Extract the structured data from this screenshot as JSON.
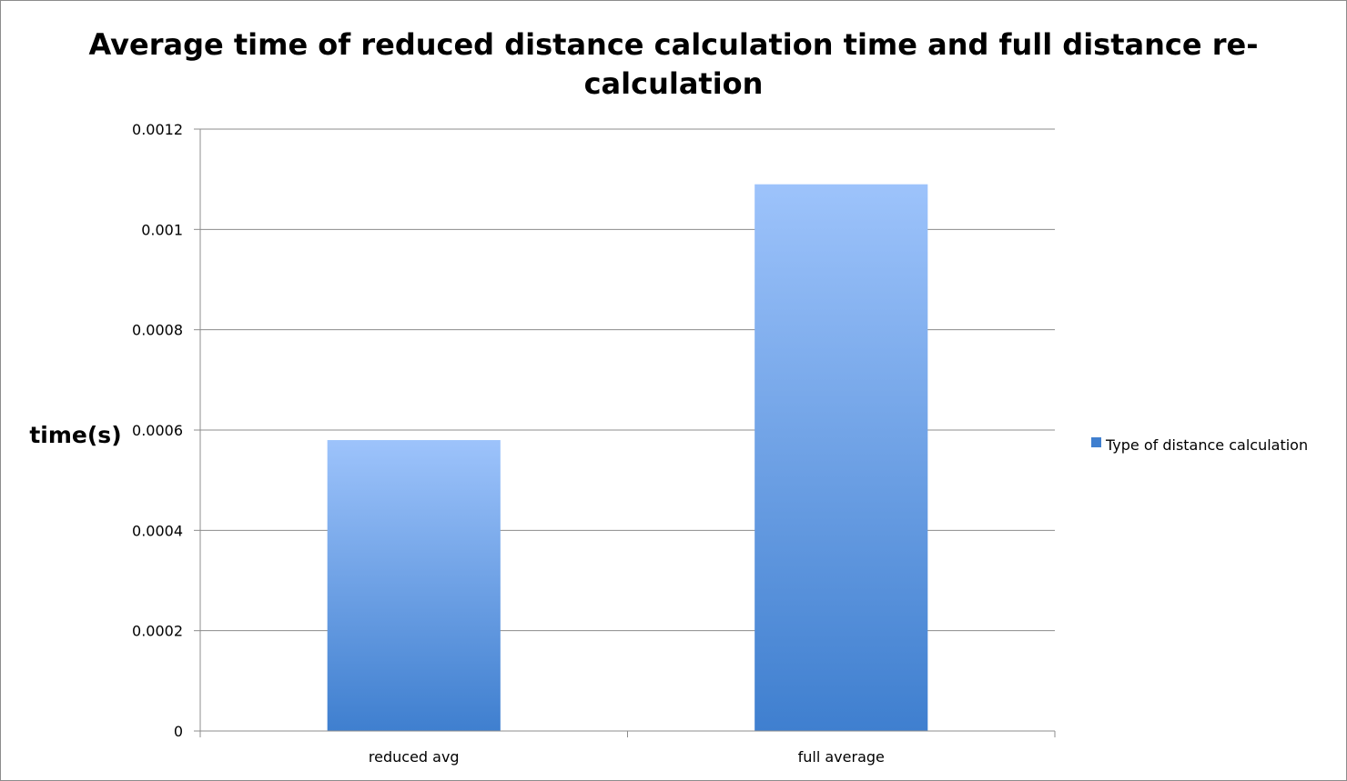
{
  "chart_data": {
    "type": "bar",
    "title_lines": [
      "Average time of reduced distance calculation time and full distance re-",
      "calculation"
    ],
    "xlabel": "",
    "ylabel": "time(s)",
    "categories": [
      "reduced avg",
      "full average"
    ],
    "series": [
      {
        "name": "Type of distance calculation",
        "values": [
          0.00058,
          0.00109
        ]
      }
    ],
    "ylim": [
      0,
      0.0012
    ],
    "yticks": [
      0,
      0.0002,
      0.0004,
      0.0006,
      0.0008,
      0.001,
      0.0012
    ],
    "ytick_labels": [
      "0",
      "0.0002",
      "0.0004",
      "0.0006",
      "0.0008",
      "0.001",
      "0.0012"
    ],
    "grid": true,
    "legend_position": "right",
    "colors": {
      "bar_top": "#9dc3fb",
      "bar_bottom": "#3f7fcf",
      "grid": "#8c8c8c"
    }
  }
}
